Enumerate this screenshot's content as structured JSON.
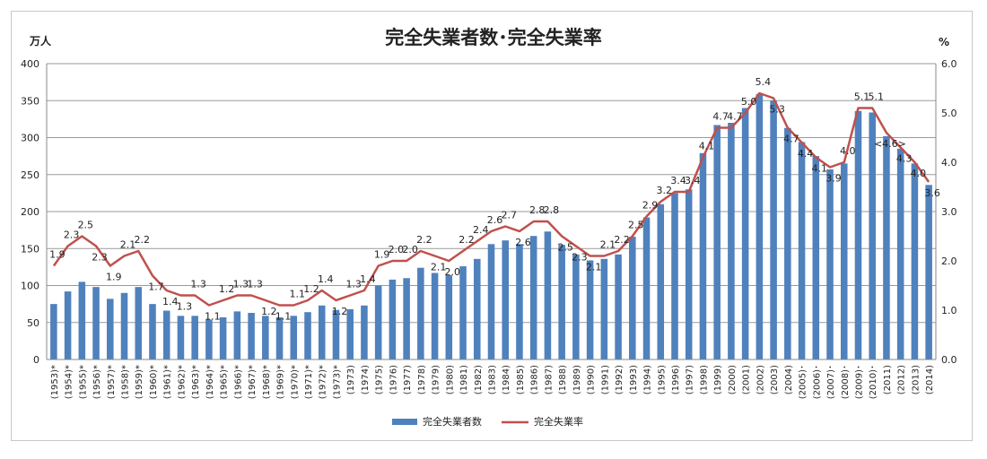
{
  "chart_data": {
    "type": "bar+line",
    "title": "完全失業者数･完全失業率",
    "left_unit": "万人",
    "right_unit": "%",
    "left_axis": {
      "min": 0,
      "max": 400,
      "step": 50
    },
    "right_axis": {
      "min": 0,
      "max": 6,
      "step": 1,
      "tick_labels": [
        "0.0",
        "1.0",
        "2.0",
        "3.0",
        "4.0",
        "5.0",
        "6.0"
      ]
    },
    "categories": [
      "(1953)*",
      "(1954)*",
      "(1955)*",
      "(1956)*",
      "(1957)*",
      "(1958)*",
      "(1959)*",
      "(1960)*",
      "(1961)*",
      "(1962)*",
      "(1963)*",
      "(1964)*",
      "(1965)*",
      "(1966)*",
      "(1967)*",
      "(1968)*",
      "(1969)*",
      "(1970)*",
      "(1971)*",
      "(1972)*",
      "(1973)*",
      "(1973)",
      "(1974)",
      "(1975)",
      "(1976)",
      "(1977)",
      "(1978)",
      "(1979)",
      "(1980)",
      "(1981)",
      "(1982)",
      "(1983)",
      "(1984)",
      "(1985)",
      "(1986)",
      "(1987)",
      "(1988)",
      "(1989)",
      "(1990)",
      "(1991)",
      "(1992)",
      "(1993)",
      "(1994)",
      "(1995)",
      "(1996)",
      "(1997)",
      "(1998)",
      "(1999)",
      "(2000)",
      "(2001)",
      "(2002)",
      "(2003)",
      "(2004)",
      "(2005)･",
      "(2006)･",
      "(2007)･",
      "(2008)･",
      "(2009)･",
      "(2010)･",
      "(2011)",
      "(2012)",
      "(2013)",
      "(2014)"
    ],
    "series": [
      {
        "name": "完全失業者数",
        "type": "bar",
        "color": "#4f81bd",
        "values": [
          75,
          92,
          105,
          98,
          82,
          90,
          98,
          75,
          66,
          59,
          59,
          54,
          57,
          65,
          63,
          59,
          57,
          59,
          64,
          73,
          67,
          68,
          73,
          100,
          108,
          110,
          124,
          117,
          114,
          126,
          136,
          156,
          161,
          156,
          167,
          173,
          155,
          142,
          134,
          136,
          142,
          166,
          192,
          210,
          225,
          230,
          279,
          317,
          320,
          340,
          359,
          350,
          313,
          294,
          275,
          257,
          265,
          336,
          334,
          302,
          285,
          265,
          236
        ]
      },
      {
        "name": "完全失業率",
        "type": "line",
        "color": "#c0504d",
        "values": [
          1.9,
          2.3,
          2.5,
          2.3,
          1.9,
          2.1,
          2.2,
          1.7,
          1.4,
          1.3,
          1.3,
          1.1,
          1.2,
          1.3,
          1.3,
          1.2,
          1.1,
          1.1,
          1.2,
          1.4,
          1.2,
          1.3,
          1.4,
          1.9,
          2.0,
          2.0,
          2.2,
          2.1,
          2.0,
          2.2,
          2.4,
          2.6,
          2.7,
          2.6,
          2.8,
          2.8,
          2.5,
          2.3,
          2.1,
          2.1,
          2.2,
          2.5,
          2.9,
          3.2,
          3.4,
          3.4,
          4.1,
          4.7,
          4.7,
          5.0,
          5.4,
          5.3,
          4.7,
          4.4,
          4.1,
          3.9,
          4.0,
          5.1,
          5.1,
          4.6,
          4.3,
          4.0,
          3.6
        ]
      }
    ],
    "data_labels": [
      "1.9",
      "2.3",
      "2.5",
      "2.3",
      "1.9",
      "2.1",
      "2.2",
      "1.7",
      "1.4",
      "1.3",
      "1.3",
      "1.1",
      "1.2",
      "1.3",
      "1.3",
      "1.2",
      "1.1",
      "1.1",
      "1.2",
      "1.4",
      "1.2",
      "1.3",
      "1.4",
      "1.9",
      "2.0",
      "2.0",
      "2.2",
      "2.1",
      "2.0",
      "2.2",
      "2.4",
      "2.6",
      "2.7",
      "2.6",
      "2.8",
      "2.8",
      "2.5",
      "2.3",
      "2.1",
      "2.1",
      "2.2",
      "2.5",
      "2.9",
      "3.2",
      "3.4",
      "3.4",
      "4.1",
      "4.7",
      "4.7",
      "5.0",
      "5.4",
      "5.3",
      "4.7",
      "4.4",
      "4.1",
      "3.9",
      "4.0",
      "5.1",
      "5.1",
      "<4.6>",
      "4.3",
      "4.0",
      "3.6"
    ],
    "legend": {
      "position": "bottom",
      "entries": [
        "完全失業者数",
        "完全失業率"
      ]
    },
    "grid": true
  }
}
